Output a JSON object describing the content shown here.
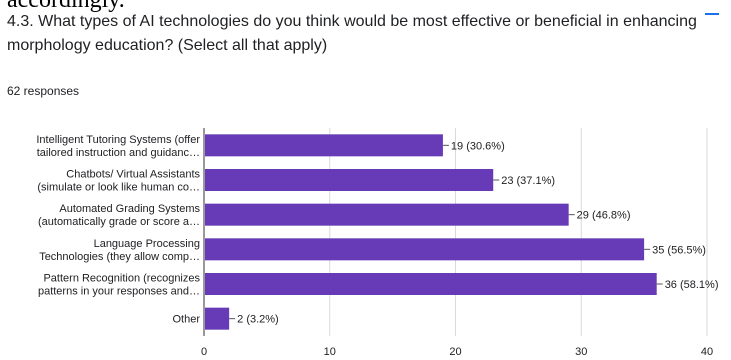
{
  "cropped_text": "accordingly.",
  "question": "4.3. What types of AI technologies do you think would be most effective or beneficial in enhancing morphology education? (Select all that apply)",
  "response_count": "62 responses",
  "colors": {
    "bar": "#673ab7",
    "accent": "#1a73e8",
    "text": "#202124",
    "grid": "#d9d9d9"
  },
  "chart_data": {
    "type": "bar",
    "orientation": "horizontal",
    "categories": [
      [
        "Intelligent Tutoring Systems (offer",
        "tailored instruction and guidanc…"
      ],
      [
        "Chatbots/ Virtual Assistants",
        "(simulate or look like human co…"
      ],
      [
        "Automated Grading Systems",
        "(automatically grade or score a…"
      ],
      [
        "Language Processing",
        "Technologies (they allow comp…"
      ],
      [
        "Pattern Recognition (recognizes",
        "patterns in your responses and…"
      ],
      [
        "Other"
      ]
    ],
    "values": [
      19,
      23,
      29,
      35,
      36,
      2
    ],
    "value_labels": [
      "19 (30.6%)",
      "23 (37.1%)",
      "29 (46.8%)",
      "35 (56.5%)",
      "36 (58.1%)",
      "2 (3.2%)"
    ],
    "xlim": [
      0,
      40
    ],
    "xticks": [
      0,
      10,
      20,
      30,
      40
    ],
    "grid": true
  }
}
